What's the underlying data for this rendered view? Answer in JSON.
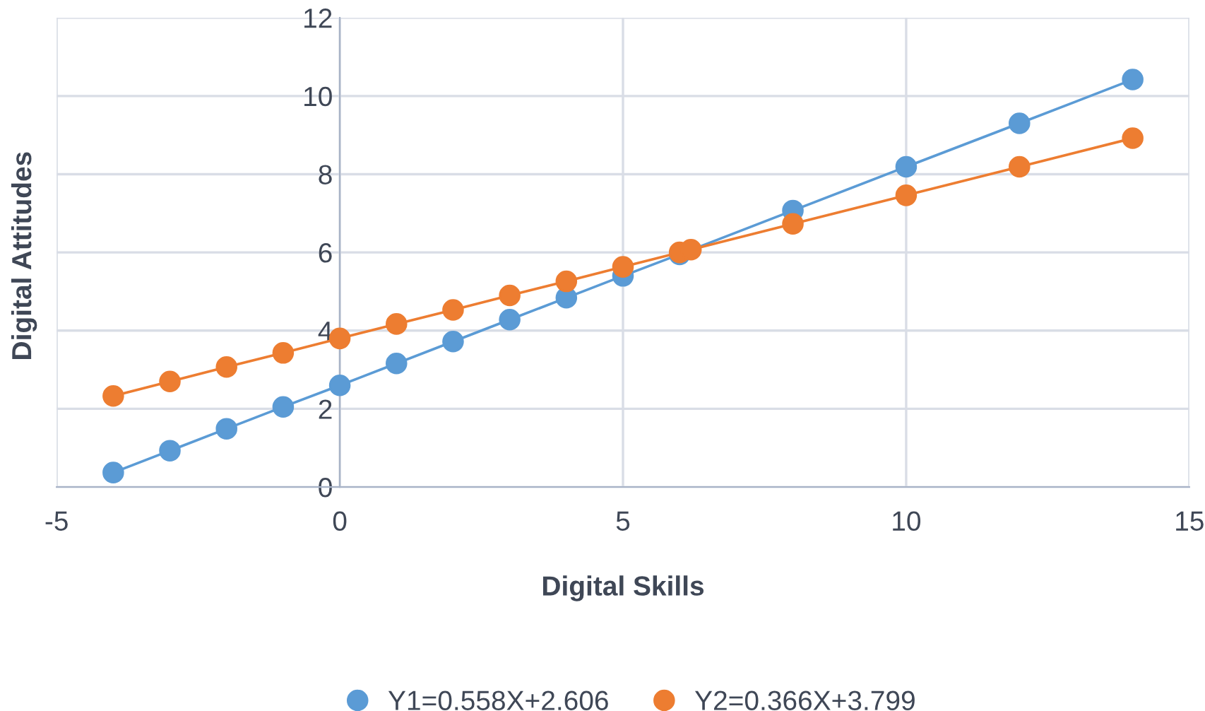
{
  "chart_data": {
    "type": "line",
    "xlabel": "Digital Skills",
    "ylabel": "Digital Attitudes",
    "xlim": [
      -5,
      15
    ],
    "xticks": [
      -5,
      0,
      5,
      10,
      15
    ],
    "ylim": [
      0,
      12
    ],
    "yticks": [
      0,
      2,
      4,
      6,
      8,
      10,
      12
    ],
    "grid": true,
    "legend": "bottom",
    "marker": "circle",
    "line_style": "solid",
    "series": [
      {
        "name": "Y1=0.558X+2.606",
        "color": "#5b9bd5",
        "x": [
          -4,
          -3,
          -2,
          -1,
          0,
          1,
          2,
          3,
          4,
          5,
          6,
          8,
          10,
          12,
          14
        ],
        "values": [
          0.37,
          0.93,
          1.49,
          2.05,
          2.6,
          3.16,
          3.72,
          4.28,
          4.84,
          5.4,
          5.95,
          7.07,
          8.19,
          9.3,
          10.42
        ]
      },
      {
        "name": "Y2=0.366X+3.799",
        "color": "#ed7d31",
        "x": [
          -4,
          -3,
          -2,
          -1,
          0,
          1,
          2,
          3,
          4,
          5,
          6,
          6.2,
          8,
          10,
          12,
          14
        ],
        "values": [
          2.33,
          2.7,
          3.07,
          3.43,
          3.8,
          4.17,
          4.53,
          4.9,
          5.26,
          5.63,
          6.0,
          6.07,
          6.73,
          7.46,
          8.19,
          8.92
        ]
      }
    ]
  }
}
